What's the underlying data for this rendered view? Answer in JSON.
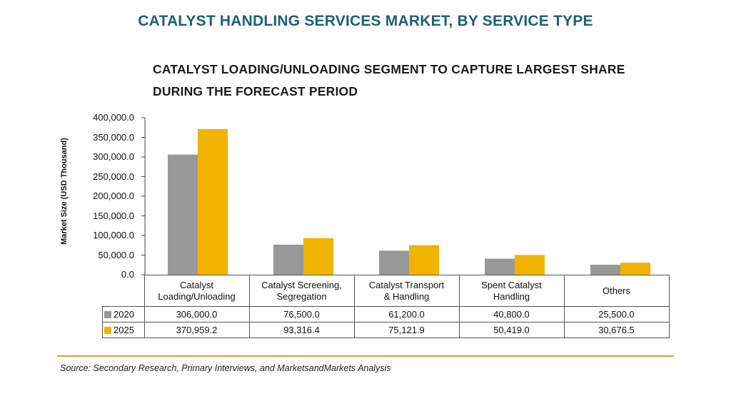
{
  "title": "CATALYST HANDLING SERVICES MARKET, BY SERVICE TYPE",
  "subtitle_lines": [
    "CATALYST LOADING/UNLOADING SEGMENT TO CAPTURE LARGEST SHARE",
    "DURING THE FORECAST PERIOD"
  ],
  "source": "Source: Secondary Research, Primary Interviews, and MarketsandMarkets Analysis",
  "colors": {
    "title": "#1f5f73",
    "series_2020": "#999999",
    "series_2025": "#f0b400",
    "rule": "#c9a83a"
  },
  "chart_data": {
    "type": "bar",
    "title": "CATALYST LOADING/UNLOADING SEGMENT TO CAPTURE LARGEST SHARE DURING THE FORECAST PERIOD",
    "ylabel": "Market Size (USD Thousand)",
    "xlabel": "",
    "ylim": [
      0,
      400000
    ],
    "yticks": [
      "0.0",
      "50,000.0",
      "100,000.0",
      "150,000.0",
      "200,000.0",
      "250,000.0",
      "300,000.0",
      "350,000.0",
      "400,000.0"
    ],
    "grid": false,
    "legend": "table-left",
    "categories": [
      [
        "Catalyst",
        "Loading/Unloading"
      ],
      [
        "Catalyst Screening,",
        "Segregation"
      ],
      [
        "Catalyst Transport",
        "& Handling"
      ],
      [
        "Spent Catalyst",
        "Handling"
      ],
      [
        "Others"
      ]
    ],
    "series": [
      {
        "name": "2020",
        "values": [
          306000.0,
          76500.0,
          61200.0,
          40800.0,
          25500.0
        ],
        "labels": [
          "306,000.0",
          "76,500.0",
          "61,200.0",
          "40,800.0",
          "25,500.0"
        ]
      },
      {
        "name": "2025",
        "values": [
          370959.2,
          93316.4,
          75121.9,
          50419.0,
          30676.5
        ],
        "labels": [
          "370,959.2",
          "93,316.4",
          "75,121.9",
          "50,419.0",
          "30,676.5"
        ]
      }
    ]
  }
}
